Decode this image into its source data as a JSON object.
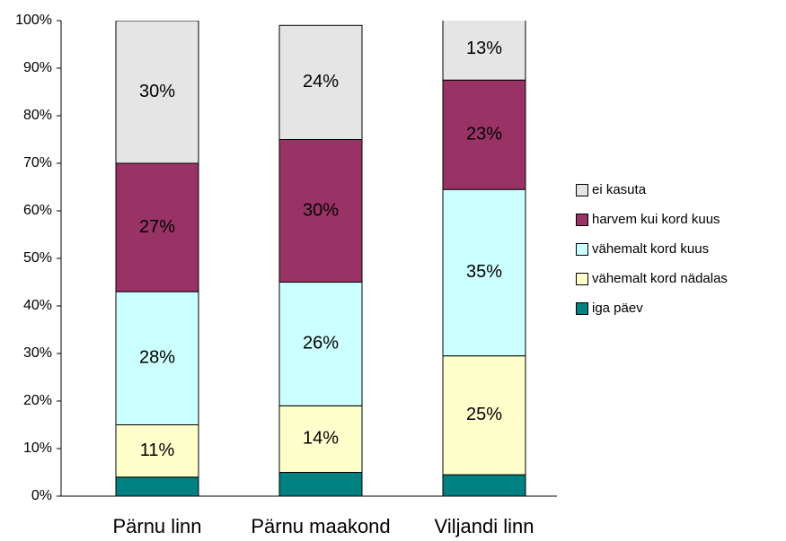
{
  "chart_data": {
    "type": "stacked_bar",
    "categories": [
      "Pärnu linn",
      "Pärnu maakond",
      "Viljandi linn"
    ],
    "series": [
      {
        "name": "iga päev",
        "color": "#008080",
        "values": [
          4,
          5,
          4.5
        ]
      },
      {
        "name": "vähemalt kord nädalas",
        "color": "#ffffcc",
        "values": [
          11,
          14,
          25
        ],
        "value_labels": [
          "11%",
          "14%",
          "25%"
        ]
      },
      {
        "name": "vähemalt kord kuus",
        "color": "#ccffff",
        "values": [
          28,
          26,
          35
        ],
        "value_labels": [
          "28%",
          "26%",
          "35%"
        ]
      },
      {
        "name": "harvem kui kord kuus",
        "color": "#993366",
        "values": [
          27,
          30,
          23
        ],
        "value_labels": [
          "27%",
          "30%",
          "23%"
        ]
      },
      {
        "name": "ei kasuta",
        "color": "#e5e5e5",
        "values": [
          30,
          24,
          13
        ],
        "value_labels": [
          "30%",
          "24%",
          "13%"
        ]
      }
    ],
    "ylim": [
      0,
      100
    ],
    "yticks": [
      {
        "value": 0,
        "label": "0%"
      },
      {
        "value": 10,
        "label": "10%"
      },
      {
        "value": 20,
        "label": "20%"
      },
      {
        "value": 30,
        "label": "30%"
      },
      {
        "value": 40,
        "label": "40%"
      },
      {
        "value": 50,
        "label": "50%"
      },
      {
        "value": 60,
        "label": "60%"
      },
      {
        "value": 70,
        "label": "70%"
      },
      {
        "value": 80,
        "label": "80%"
      },
      {
        "value": 90,
        "label": "90%"
      },
      {
        "value": 100,
        "label": "100%"
      }
    ],
    "grid": false,
    "legend": "right"
  }
}
